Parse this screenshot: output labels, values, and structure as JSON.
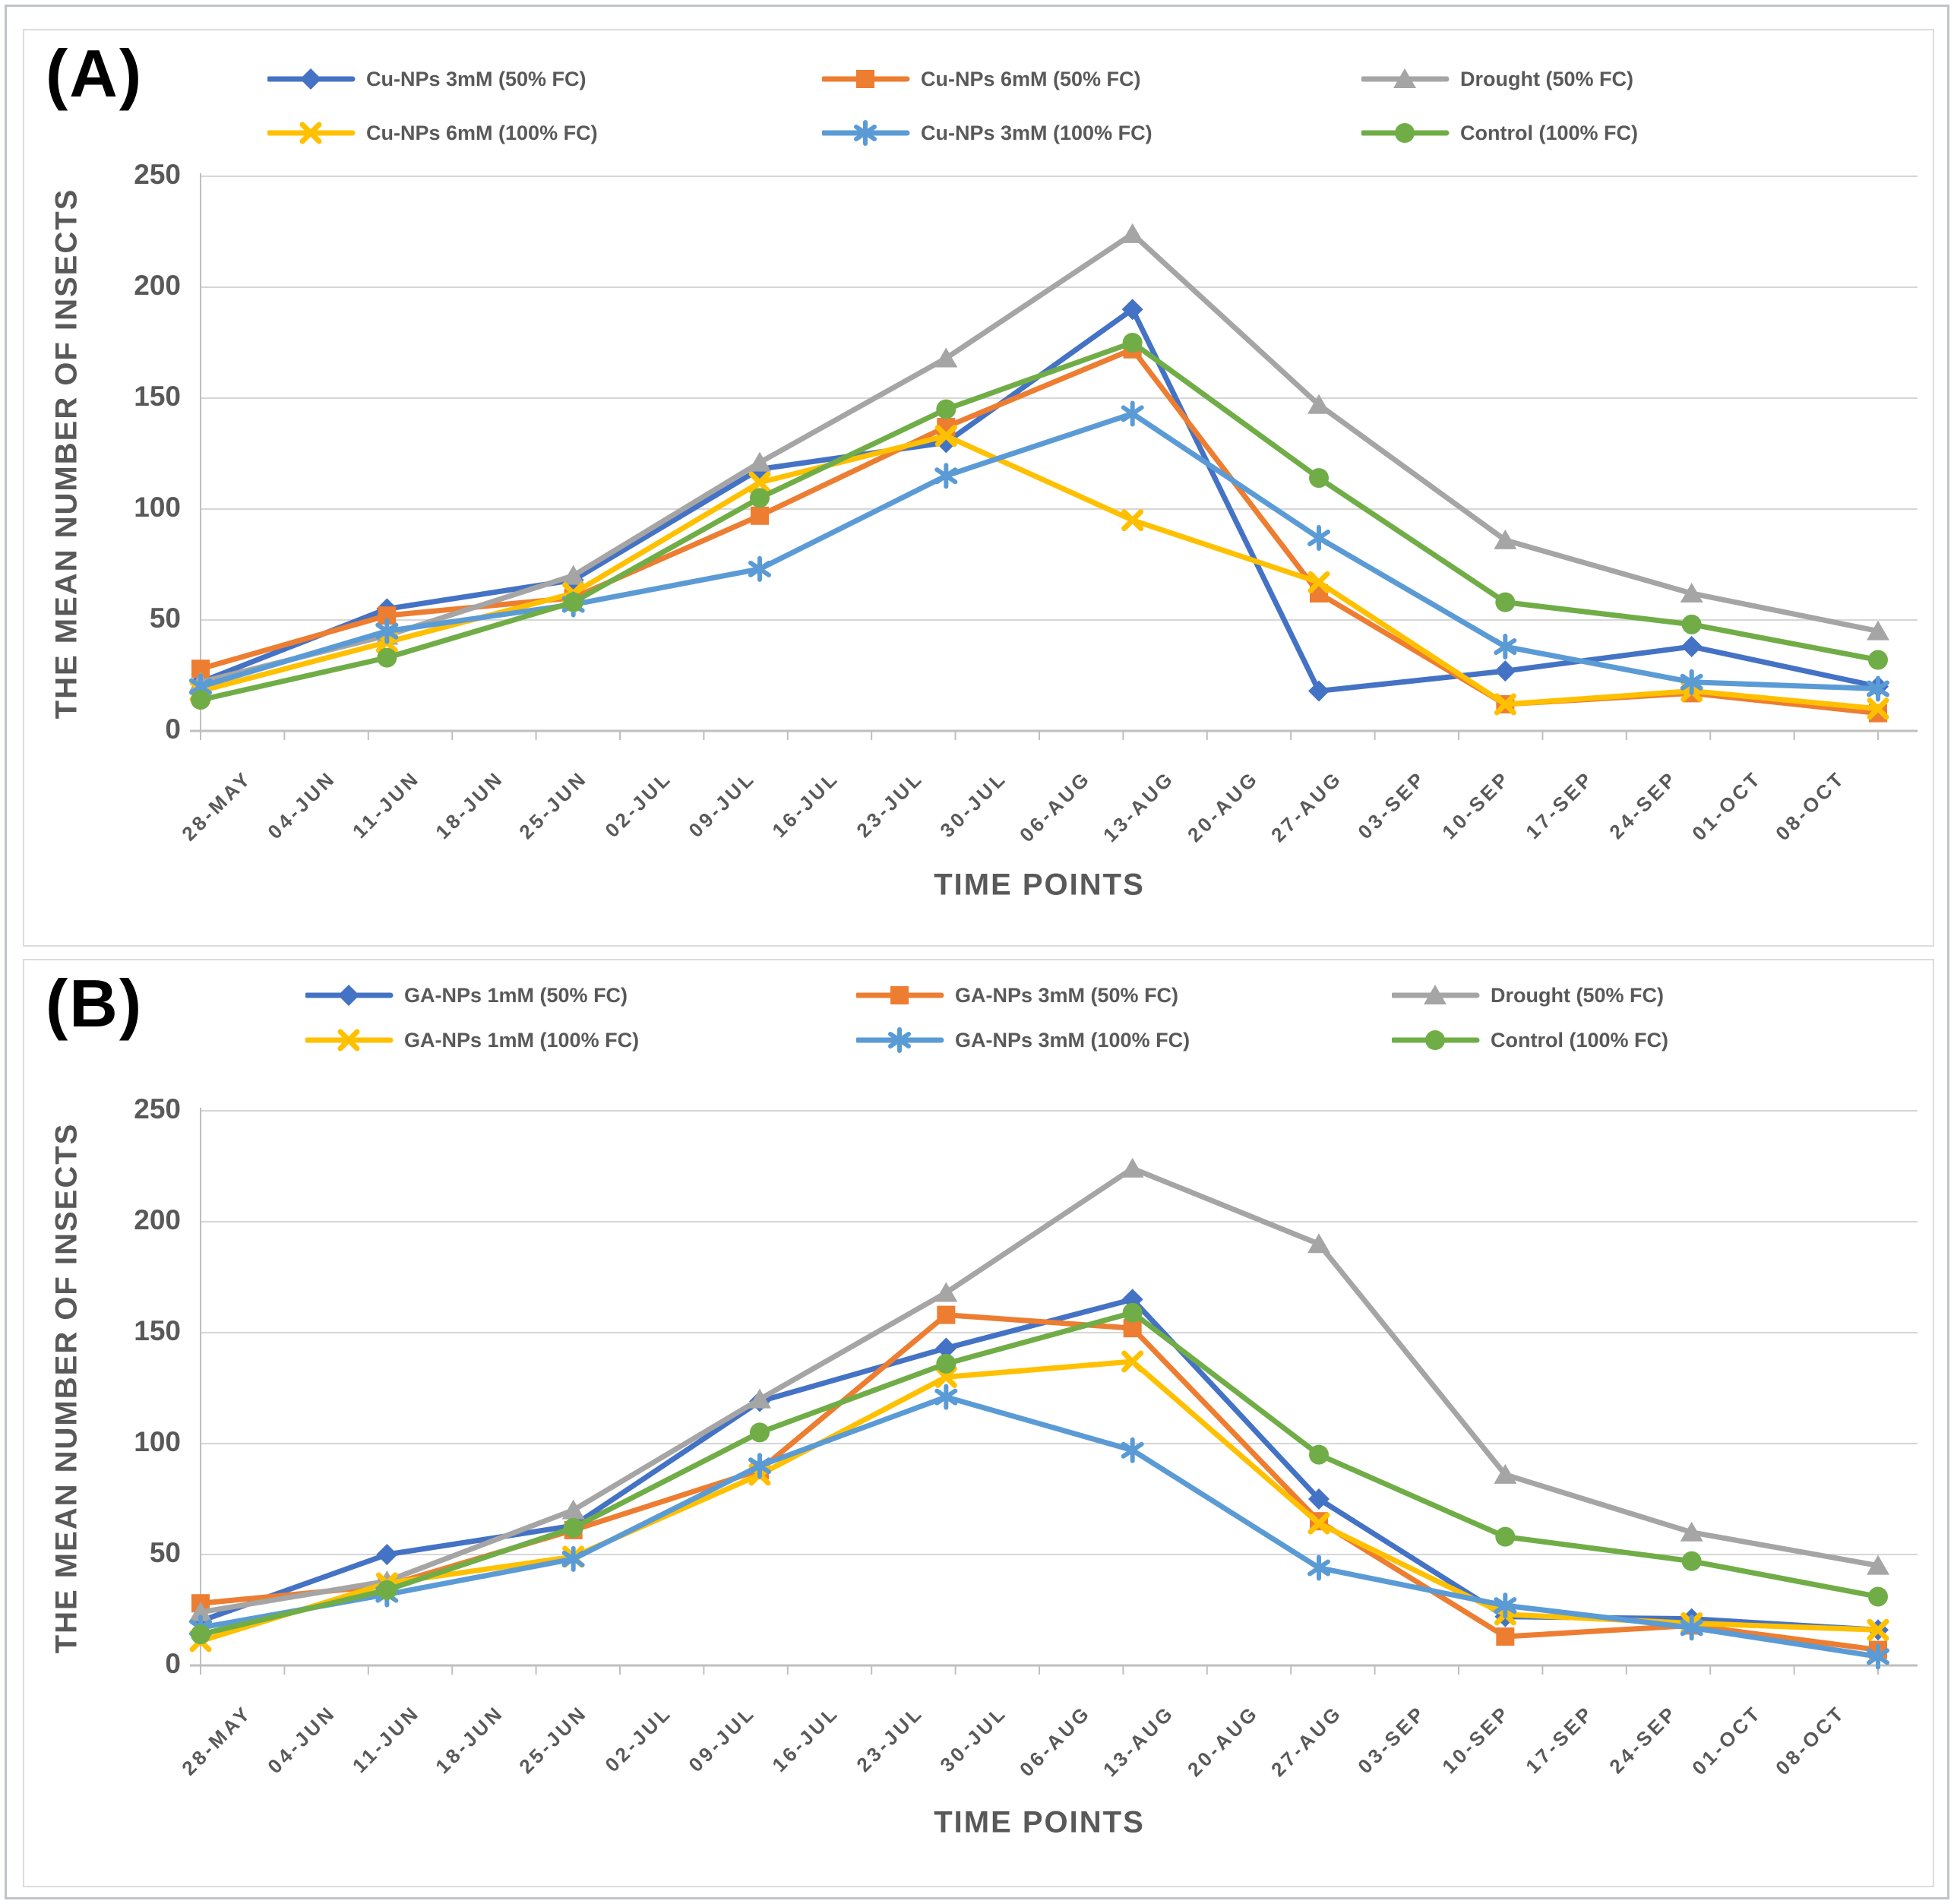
{
  "figure_labels": {
    "panel_a": "(A)",
    "panel_b": "(B)"
  },
  "styles": {
    "grid_color": "#d6d6d6",
    "axis_color": "#bfbfbf",
    "text_color": "#595959",
    "series_colors": {
      "blue": "#4472C4",
      "orange": "#ED7D31",
      "gray": "#A5A5A5",
      "yellow": "#FFC000",
      "light_blue": "#5B9BD5",
      "green": "#70AD47"
    }
  },
  "chart_data": [
    {
      "type": "line",
      "panel": "(A)",
      "ylabel": "THE MEAN NUMBER OF INSECTS",
      "xlabel": "TIME POINTS",
      "ylim": [
        0,
        250
      ],
      "yticks": [
        0,
        50,
        100,
        150,
        200,
        250
      ],
      "grid": "horizontal",
      "legend_position": "top",
      "x_labels": [
        "28-MAY",
        "04-JUN",
        "11-JUN",
        "18-JUN",
        "25-JUN",
        "02-JUL",
        "09-JUL",
        "16-JUL",
        "23-JUL",
        "30-JUL",
        "06-AUG",
        "13-AUG",
        "20-AUG",
        "27-AUG",
        "03-SEP",
        "10-SEP",
        "17-SEP",
        "24-SEP",
        "01-OCT",
        "08-OCT"
      ],
      "points_per_series": 10,
      "series": [
        {
          "name": "Cu-NPs 3mM (50% FC)",
          "color": "#4472C4",
          "marker": "diamond",
          "values": [
            22,
            55,
            68,
            118,
            130,
            190,
            18,
            27,
            38,
            20
          ]
        },
        {
          "name": "Cu-NPs 6mM (50% FC)",
          "color": "#ED7D31",
          "marker": "square",
          "values": [
            28,
            52,
            60,
            97,
            137,
            172,
            62,
            12,
            17,
            8
          ]
        },
        {
          "name": "Drought (50% FC)",
          "color": "#A5A5A5",
          "marker": "triangle",
          "values": [
            22,
            43,
            70,
            121,
            168,
            224,
            147,
            86,
            62,
            45
          ]
        },
        {
          "name": "Cu-NPs 6mM (100% FC)",
          "color": "#FFC000",
          "marker": "x",
          "values": [
            18,
            40,
            62,
            112,
            133,
            95,
            67,
            12,
            18,
            10
          ]
        },
        {
          "name": "Cu-NPs 3mM (100% FC)",
          "color": "#5B9BD5",
          "marker": "asterisk",
          "values": [
            20,
            45,
            57,
            73,
            115,
            143,
            87,
            38,
            22,
            19
          ]
        },
        {
          "name": "Control (100% FC)",
          "color": "#70AD47",
          "marker": "circle",
          "values": [
            14,
            33,
            58,
            105,
            145,
            175,
            114,
            58,
            48,
            32
          ]
        }
      ]
    },
    {
      "type": "line",
      "panel": "(B)",
      "ylabel": "THE MEAN NUMBER OF INSECTS",
      "xlabel": "TIME POINTS",
      "ylim": [
        0,
        250
      ],
      "yticks": [
        0,
        50,
        100,
        150,
        200,
        250
      ],
      "grid": "horizontal",
      "legend_position": "top",
      "x_labels": [
        "28-MAY",
        "04-JUN",
        "11-JUN",
        "18-JUN",
        "25-JUN",
        "02-JUL",
        "09-JUL",
        "16-JUL",
        "23-JUL",
        "30-JUL",
        "06-AUG",
        "13-AUG",
        "20-AUG",
        "27-AUG",
        "03-SEP",
        "10-SEP",
        "17-SEP",
        "24-SEP",
        "01-OCT",
        "08-OCT"
      ],
      "points_per_series": 10,
      "series": [
        {
          "name": "GA-NPs 1mM (50% FC)",
          "color": "#4472C4",
          "marker": "diamond",
          "values": [
            20,
            50,
            63,
            119,
            143,
            165,
            75,
            22,
            21,
            16
          ]
        },
        {
          "name": "GA-NPs 3mM (50% FC)",
          "color": "#ED7D31",
          "marker": "square",
          "values": [
            28,
            36,
            61,
            88,
            158,
            152,
            65,
            13,
            18,
            7
          ]
        },
        {
          "name": "Drought (50% FC)",
          "color": "#A5A5A5",
          "marker": "triangle",
          "values": [
            24,
            38,
            70,
            120,
            168,
            224,
            190,
            86,
            60,
            45
          ]
        },
        {
          "name": "GA-NPs 1mM (100% FC)",
          "color": "#FFC000",
          "marker": "x",
          "values": [
            11,
            37,
            49,
            86,
            130,
            137,
            64,
            23,
            19,
            16
          ]
        },
        {
          "name": "GA-NPs 3mM (100% FC)",
          "color": "#5B9BD5",
          "marker": "asterisk",
          "values": [
            17,
            32,
            48,
            90,
            121,
            97,
            44,
            27,
            17,
            4
          ]
        },
        {
          "name": "Control (100% FC)",
          "color": "#70AD47",
          "marker": "circle",
          "values": [
            14,
            34,
            62,
            105,
            136,
            159,
            95,
            58,
            47,
            31
          ]
        }
      ]
    }
  ]
}
